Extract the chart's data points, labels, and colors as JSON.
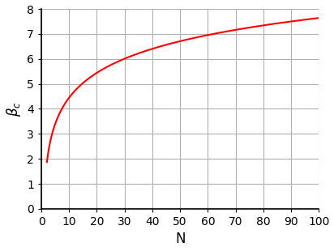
{
  "xlabel": "N",
  "ylabel": "$\\beta_c$",
  "xlim": [
    0,
    100
  ],
  "ylim": [
    0,
    8
  ],
  "xticks": [
    0,
    10,
    20,
    30,
    40,
    50,
    60,
    70,
    80,
    90,
    100
  ],
  "yticks": [
    0,
    1,
    2,
    3,
    4,
    5,
    6,
    7,
    8
  ],
  "line_color": "#ff0000",
  "line_width": 1.5,
  "n_start": 2,
  "n_end": 100,
  "n_points": 2000,
  "background_color": "#ffffff",
  "grid_color": "#b0b0b0",
  "grid_linewidth": 0.8,
  "xlabel_fontsize": 12,
  "ylabel_fontsize": 12,
  "tick_fontsize": 10,
  "spine_color": "#000000"
}
